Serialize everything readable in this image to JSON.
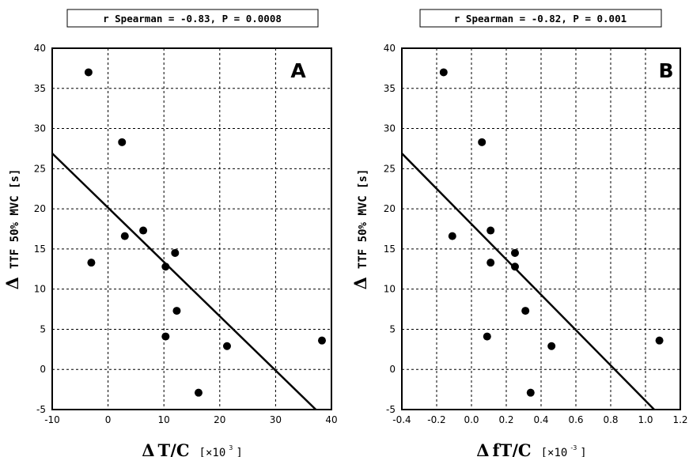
{
  "chart_data": [
    {
      "type": "scatter",
      "panel_label": "A",
      "stat_text": "r Spearman = -0.83, P = 0.0008",
      "xlabel": {
        "delta": "Δ",
        "main": "T/C",
        "unit_prefix": "[×10",
        "unit_exp": "3",
        "unit_suffix": "]"
      },
      "ylabel": {
        "delta": "Δ",
        "main": "TTF 50% MVC [s]"
      },
      "xlim": [
        -10,
        40
      ],
      "ylim": [
        -5,
        40
      ],
      "xticks": [
        -10,
        0,
        10,
        20,
        30,
        40
      ],
      "yticks": [
        -5,
        0,
        5,
        10,
        15,
        20,
        25,
        30,
        35,
        40
      ],
      "grid": true,
      "points": [
        {
          "x": -3.5,
          "y": 37.0
        },
        {
          "x": 2.5,
          "y": 28.3
        },
        {
          "x": -3.0,
          "y": 13.3
        },
        {
          "x": 3.0,
          "y": 16.6
        },
        {
          "x": 6.3,
          "y": 17.3
        },
        {
          "x": 12.0,
          "y": 14.5
        },
        {
          "x": 10.3,
          "y": 12.8
        },
        {
          "x": 12.3,
          "y": 7.3
        },
        {
          "x": 10.3,
          "y": 4.1
        },
        {
          "x": 21.3,
          "y": 2.9
        },
        {
          "x": 16.2,
          "y": -2.9
        },
        {
          "x": 38.3,
          "y": 3.6
        }
      ],
      "fit_line": {
        "x1": -10,
        "y1": 26.9,
        "x2": 37.2,
        "y2": -5
      }
    },
    {
      "type": "scatter",
      "panel_label": "B",
      "stat_text": "r Spearman = -0.82, P = 0.001",
      "xlabel": {
        "delta": "Δ",
        "main": "fT/C",
        "unit_prefix": "[×10",
        "unit_exp": "-3",
        "unit_suffix": "]"
      },
      "ylabel": {
        "delta": "Δ",
        "main": "TTF 50% MVC [s]"
      },
      "xlim": [
        -0.4,
        1.2
      ],
      "ylim": [
        -5,
        40
      ],
      "xticks": [
        -0.4,
        -0.2,
        0.0,
        0.2,
        0.4,
        0.6,
        0.8,
        1.0,
        1.2
      ],
      "xtick_labels": [
        "-0.4",
        "-0.2",
        "0.0",
        "0.2",
        "0.4",
        "0.6",
        "0.8",
        "1.0",
        "1.2"
      ],
      "yticks": [
        -5,
        0,
        5,
        10,
        15,
        20,
        25,
        30,
        35,
        40
      ],
      "grid": true,
      "points": [
        {
          "x": -0.16,
          "y": 37.0
        },
        {
          "x": 0.06,
          "y": 28.3
        },
        {
          "x": -0.11,
          "y": 16.6
        },
        {
          "x": 0.11,
          "y": 17.3
        },
        {
          "x": 0.25,
          "y": 14.5
        },
        {
          "x": 0.11,
          "y": 13.3
        },
        {
          "x": 0.25,
          "y": 12.8
        },
        {
          "x": 0.31,
          "y": 7.3
        },
        {
          "x": 0.09,
          "y": 4.1
        },
        {
          "x": 0.46,
          "y": 2.9
        },
        {
          "x": 0.34,
          "y": -2.9
        },
        {
          "x": 1.08,
          "y": 3.6
        }
      ],
      "fit_line": {
        "x1": -0.4,
        "y1": 26.9,
        "x2": 1.05,
        "y2": -5
      }
    }
  ]
}
